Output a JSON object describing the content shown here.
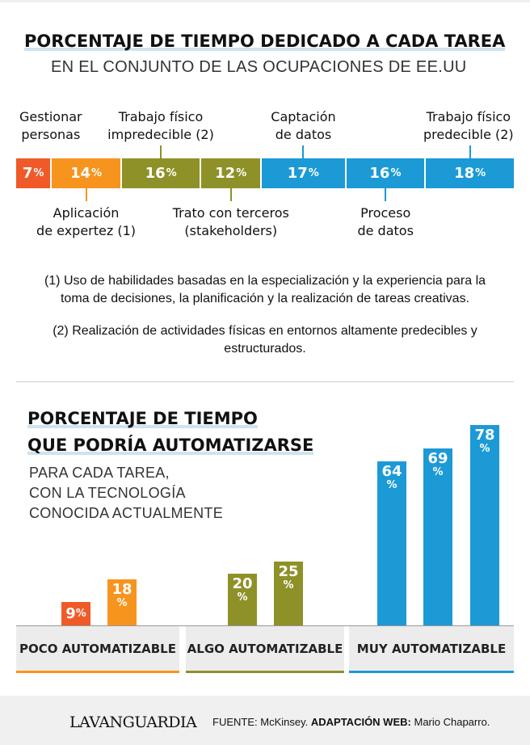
{
  "header": {
    "title": "PORCENTAJE DE TIEMPO DEDICADO A CADA TAREA",
    "subtitle": "EN EL CONJUNTO DE LAS OCUPACIONES DE EE.UU"
  },
  "notes": {
    "note1": "(1) Uso de habilidades basadas en la especialización y la experiencia para la toma de decisiones, la planificación y la realización de tareas creativas.",
    "note2": "(2) Realización de actividades físicas en entornos altamente predecibles y estructurados."
  },
  "section2": {
    "title_line1": "PORCENTAJE DE TIEMPO",
    "title_line2": "QUE PODRÍA AUTOMATIZARSE",
    "sub_line1": "PARA CADA TAREA,",
    "sub_line2": "CON LA TECNOLOGÍA",
    "sub_line3": "CONOCIDA ACTUALMENTE"
  },
  "chart_data": [
    {
      "type": "bar",
      "orientation": "stacked-horizontal",
      "title": "PORCENTAJE DE TIEMPO DEDICADO A CADA TAREA",
      "subtitle": "EN EL CONJUNTO DE LAS OCUPACIONES DE EE.UU",
      "unit": "%",
      "segments": [
        {
          "label_line1": "Gestionar",
          "label_line2": "personas",
          "value": 7,
          "color": "#f05a28",
          "label_pos": "top"
        },
        {
          "label_line1": "Aplicación",
          "label_line2": "de expertez (1)",
          "value": 14,
          "color": "#f7941d",
          "label_pos": "bottom"
        },
        {
          "label_line1": "Trabajo físico",
          "label_line2": "impredecible (2)",
          "value": 16,
          "color": "#8e9128",
          "label_pos": "top"
        },
        {
          "label_line1": "Trato con terceros",
          "label_line2": "(stakeholders)",
          "value": 12,
          "color": "#8e9128",
          "label_pos": "bottom"
        },
        {
          "label_line1": "Captación",
          "label_line2": "de datos",
          "value": 17,
          "color": "#1b9ad6",
          "label_pos": "top"
        },
        {
          "label_line1": "Proceso",
          "label_line2": "de datos",
          "value": 16,
          "color": "#1b9ad6",
          "label_pos": "bottom"
        },
        {
          "label_line1": "Trabajo físico",
          "label_line2": "predecible (2)",
          "value": 18,
          "color": "#1b9ad6",
          "label_pos": "top"
        }
      ]
    },
    {
      "type": "bar",
      "title": "PORCENTAJE DE TIEMPO QUE PODRÍA AUTOMATIZARSE",
      "unit": "%",
      "ylim": [
        0,
        80
      ],
      "groups": [
        {
          "name": "POCO AUTOMATIZABLE",
          "color": "#f7941d",
          "values": [
            9,
            18
          ],
          "colors": [
            "#f05a28",
            "#f7941d"
          ]
        },
        {
          "name": "ALGO AUTOMATIZABLE",
          "color": "#8e9128",
          "values": [
            20,
            25
          ],
          "colors": [
            "#8e9128",
            "#8e9128"
          ]
        },
        {
          "name": "MUY AUTOMATIZABLE",
          "color": "#1b9ad6",
          "values": [
            64,
            69,
            78
          ],
          "colors": [
            "#1b9ad6",
            "#1b9ad6",
            "#1b9ad6"
          ]
        }
      ]
    }
  ],
  "footer": {
    "logo": "LAVANGUARDIA",
    "source_label": "FUENTE:",
    "source_value": "McKinsey.",
    "adapt_label": "ADAPTACIÓN WEB:",
    "adapt_value": "Mario Chaparro."
  }
}
